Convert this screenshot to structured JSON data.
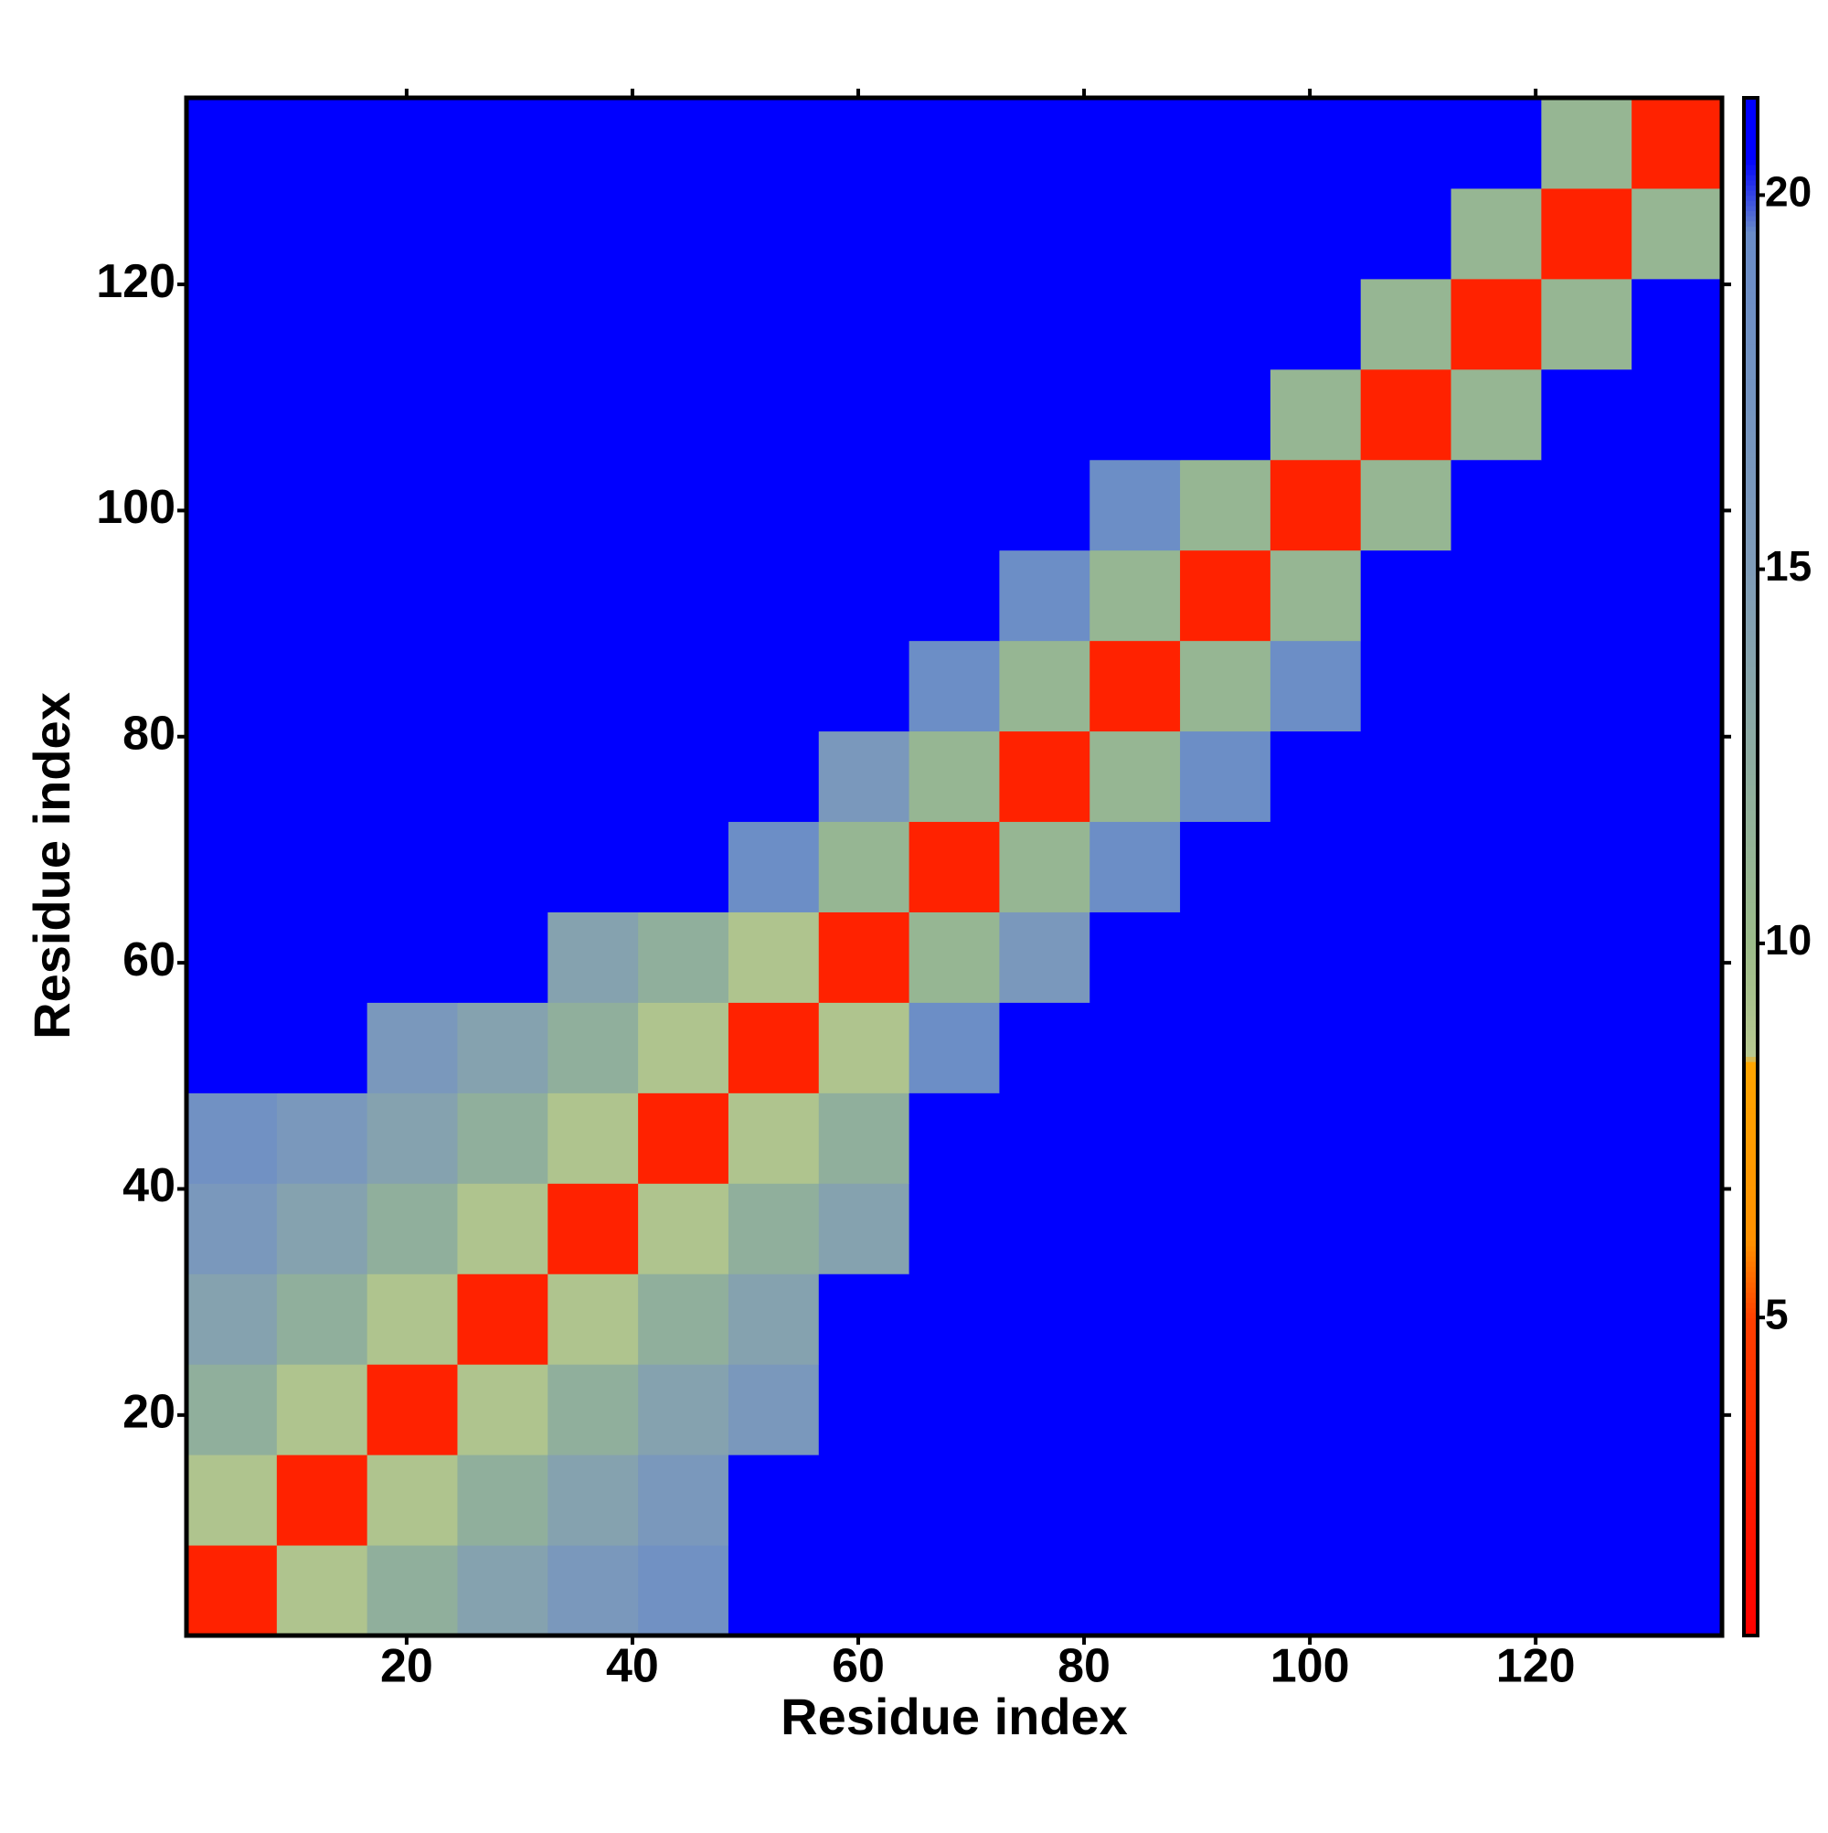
{
  "chart_data": {
    "type": "heatmap",
    "x_label": "Residue index",
    "y_label": "Residue index",
    "x": [
      4.5,
      12.5,
      20.5,
      28.5,
      36.5,
      44.5,
      52.5,
      60.5,
      68.5,
      76.5,
      84.5,
      92.5,
      100.5,
      108.5,
      116.5,
      124.5,
      132.5
    ],
    "y": [
      4.5,
      12.5,
      20.5,
      28.5,
      36.5,
      44.5,
      52.5,
      60.5,
      68.5,
      76.5,
      84.5,
      92.5,
      100.5,
      108.5,
      116.5,
      124.5,
      132.5
    ],
    "z": [
      [
        3,
        9,
        12,
        14,
        16,
        18,
        21,
        21,
        21,
        21,
        21,
        21,
        21,
        21,
        21,
        21,
        21
      ],
      [
        9,
        3,
        9,
        12,
        14,
        16,
        21,
        21,
        21,
        21,
        21,
        21,
        21,
        21,
        21,
        21,
        21
      ],
      [
        12,
        9,
        3,
        9,
        12,
        14,
        16,
        21,
        21,
        21,
        21,
        21,
        21,
        21,
        21,
        21,
        21
      ],
      [
        14,
        12,
        9,
        3,
        9,
        12,
        14,
        21,
        21,
        21,
        21,
        21,
        21,
        21,
        21,
        21,
        21
      ],
      [
        16,
        14,
        12,
        9,
        3,
        9,
        12,
        14,
        21,
        21,
        21,
        21,
        21,
        21,
        21,
        21,
        21
      ],
      [
        18,
        16,
        14,
        12,
        9,
        3,
        9,
        12,
        21,
        21,
        21,
        21,
        21,
        21,
        21,
        21,
        21
      ],
      [
        21,
        21,
        16,
        14,
        12,
        9,
        3,
        9,
        19,
        21,
        21,
        21,
        21,
        21,
        21,
        21,
        21
      ],
      [
        21,
        21,
        21,
        21,
        14,
        12,
        9,
        3,
        11,
        16,
        21,
        21,
        21,
        21,
        21,
        21,
        21
      ],
      [
        21,
        21,
        21,
        21,
        21,
        21,
        19,
        11,
        3,
        11,
        19,
        21,
        21,
        21,
        21,
        21,
        21
      ],
      [
        21,
        21,
        21,
        21,
        21,
        21,
        21,
        16,
        11,
        3,
        11,
        19,
        21,
        21,
        21,
        21,
        21
      ],
      [
        21,
        21,
        21,
        21,
        21,
        21,
        21,
        21,
        19,
        11,
        3,
        11,
        19,
        21,
        21,
        21,
        21
      ],
      [
        21,
        21,
        21,
        21,
        21,
        21,
        21,
        21,
        21,
        19,
        11,
        3,
        11,
        21,
        21,
        21,
        21
      ],
      [
        21,
        21,
        21,
        21,
        21,
        21,
        21,
        21,
        21,
        21,
        19,
        11,
        3,
        11,
        21,
        21,
        21
      ],
      [
        21,
        21,
        21,
        21,
        21,
        21,
        21,
        21,
        21,
        21,
        21,
        21,
        11,
        3,
        11,
        21,
        21
      ],
      [
        21,
        21,
        21,
        21,
        21,
        21,
        21,
        21,
        21,
        21,
        21,
        21,
        21,
        11,
        3,
        11,
        21
      ],
      [
        21,
        21,
        21,
        21,
        21,
        21,
        21,
        21,
        21,
        21,
        21,
        21,
        21,
        21,
        11,
        3,
        11
      ],
      [
        21,
        21,
        21,
        21,
        21,
        21,
        21,
        21,
        21,
        21,
        21,
        21,
        21,
        21,
        21,
        11,
        3
      ]
    ],
    "xlim": [
      0.5,
      136.5
    ],
    "ylim": [
      0.5,
      136.5
    ],
    "xticks": [
      20,
      40,
      60,
      80,
      100,
      120
    ],
    "yticks": [
      20,
      40,
      60,
      80,
      100,
      120
    ],
    "zlim": [
      0.75,
      21.3
    ],
    "zticks": [
      5,
      10,
      15,
      20
    ],
    "colorscale": [
      [
        0.75,
        "#ff0000"
      ],
      [
        5,
        "#ff4000"
      ],
      [
        6,
        "#ff9000"
      ],
      [
        8.4,
        "#ffa500"
      ],
      [
        8.5,
        "#b8c890"
      ],
      [
        10,
        "#9cbc8a"
      ],
      [
        15,
        "#7f9cb8"
      ],
      [
        19.5,
        "#6a8cc8"
      ],
      [
        20.5,
        "#0000ff"
      ],
      [
        21.3,
        "#0000ff"
      ]
    ]
  }
}
